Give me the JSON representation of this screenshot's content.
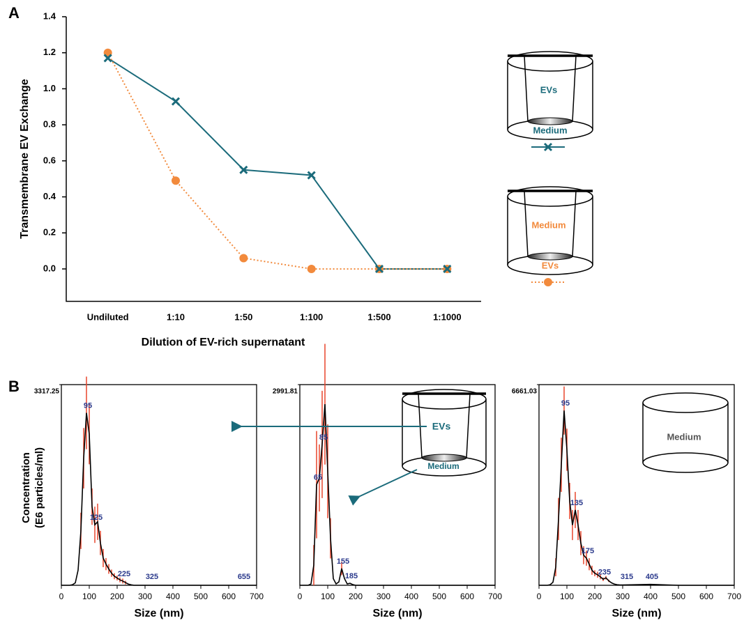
{
  "panels": [
    "A",
    "B"
  ],
  "chart_data": [
    {
      "type": "line",
      "x_label": "Dilution of EV-rich supernatant",
      "y_label": "Transmembrane EV Exchange",
      "categories": [
        "Undiluted",
        "1:10",
        "1:50",
        "1:100",
        "1:500",
        "1:1000"
      ],
      "series": [
        {
          "color": "#1b6b7b",
          "marker": "x",
          "line_style": "solid",
          "values": [
            1.17,
            0.93,
            0.55,
            0.52,
            0,
            0
          ]
        },
        {
          "color": "#f28a3c",
          "marker": "circle",
          "line_style": "dotted",
          "values": [
            1.2,
            0.49,
            0.06,
            0,
            0,
            0
          ]
        }
      ],
      "ylim": [
        -0.18,
        1.4
      ],
      "yticks": [
        {
          "value": 0,
          "label": "0.0"
        },
        0.2,
        0.4,
        0.6,
        0.8,
        {
          "value": 1,
          "label": "1.0"
        },
        1.2,
        1.4
      ],
      "legend_diagrams": [
        {
          "insert_label": "EVs",
          "well_label": "Medium"
        },
        {
          "insert_label": "Medium",
          "well_label": "EVs"
        }
      ]
    },
    {
      "type": "line",
      "x_label": "Size (nm)",
      "y_label": [
        "Concentration",
        "(E6 particles/ml)"
      ],
      "color": "#000000",
      "error_color": "#e8452c",
      "x": [
        0,
        10,
        20,
        30,
        40,
        50,
        60,
        70,
        80,
        90,
        100,
        110,
        120,
        130,
        140,
        150,
        160,
        170,
        180,
        190,
        200,
        210,
        220,
        230,
        240,
        250,
        260,
        270,
        280,
        290,
        300,
        400,
        500,
        600,
        700
      ],
      "values": [
        0,
        0,
        0,
        0,
        10,
        40,
        250,
        900,
        2100,
        2850,
        2500,
        1300,
        1000,
        1050,
        700,
        450,
        350,
        270,
        200,
        150,
        120,
        90,
        70,
        45,
        20,
        8,
        0,
        0,
        0,
        0,
        0,
        0,
        0,
        0,
        0
      ],
      "errors": [
        0,
        0,
        0,
        0,
        0,
        0,
        0,
        300,
        500,
        600,
        500,
        300,
        300,
        300,
        200,
        150,
        100,
        80,
        60,
        50,
        40,
        40,
        40,
        30,
        0,
        0,
        0,
        0,
        0,
        0,
        0,
        0,
        0,
        0,
        0
      ],
      "xlim": [
        0,
        700
      ],
      "xticks": [
        0,
        100,
        200,
        300,
        400,
        500,
        600,
        700
      ],
      "ylim": [
        0,
        3317.25
      ],
      "yticks": [
        3317.25
      ],
      "peaks": [
        95,
        125,
        225,
        325,
        655
      ]
    },
    {
      "type": "line",
      "x_label": "Size (nm)",
      "color": "#000000",
      "error_color": "#e8452c",
      "x": [
        0,
        10,
        20,
        30,
        40,
        50,
        60,
        70,
        80,
        90,
        100,
        110,
        120,
        130,
        140,
        150,
        160,
        170,
        180,
        190,
        200,
        210,
        220,
        230,
        240,
        250,
        260,
        270,
        280,
        290,
        300,
        400,
        500,
        600,
        700
      ],
      "values": [
        0,
        0,
        0,
        0,
        20,
        300,
        1500,
        1600,
        2100,
        2700,
        1700,
        700,
        100,
        20,
        50,
        250,
        100,
        20,
        30,
        10,
        0,
        0,
        0,
        0,
        0,
        0,
        0,
        0,
        0,
        0,
        0,
        0,
        0,
        0,
        0
      ],
      "errors": [
        0,
        0,
        0,
        0,
        0,
        300,
        800,
        500,
        800,
        900,
        700,
        300,
        0,
        0,
        0,
        100,
        0,
        0,
        0,
        0,
        0,
        0,
        0,
        0,
        0,
        0,
        0,
        0,
        0,
        0,
        0,
        0,
        0,
        0,
        0
      ],
      "xlim": [
        0,
        700
      ],
      "xticks": [
        0,
        100,
        200,
        300,
        400,
        500,
        600,
        700
      ],
      "ylim": [
        0,
        2991.81
      ],
      "yticks": [
        2991.81
      ],
      "peaks": [
        65,
        85,
        155,
        185
      ],
      "diagram": {
        "insert_label": "EVs",
        "well_label": "Medium"
      }
    },
    {
      "type": "line",
      "x_label": "Size (nm)",
      "color": "#000000",
      "error_color": "#e8452c",
      "x": [
        0,
        10,
        20,
        30,
        40,
        50,
        60,
        70,
        80,
        90,
        100,
        110,
        120,
        130,
        140,
        150,
        160,
        170,
        180,
        190,
        200,
        210,
        220,
        230,
        240,
        250,
        260,
        270,
        280,
        290,
        300,
        400,
        500,
        600,
        700
      ],
      "values": [
        0,
        0,
        0,
        0,
        20,
        100,
        600,
        2200,
        4000,
        5800,
        4500,
        2800,
        2000,
        2500,
        2000,
        1400,
        1000,
        900,
        700,
        500,
        400,
        350,
        280,
        200,
        250,
        150,
        80,
        40,
        20,
        10,
        10,
        30,
        0,
        0,
        0
      ],
      "errors": [
        0,
        0,
        0,
        0,
        0,
        0,
        300,
        700,
        900,
        800,
        700,
        600,
        500,
        600,
        500,
        400,
        300,
        250,
        200,
        150,
        100,
        100,
        80,
        60,
        60,
        40,
        0,
        0,
        0,
        0,
        0,
        0,
        0,
        0,
        0
      ],
      "xlim": [
        0,
        700
      ],
      "xticks": [
        0,
        100,
        200,
        300,
        400,
        500,
        600,
        700
      ],
      "ylim": [
        0,
        6661.03
      ],
      "yticks": [
        6661.03
      ],
      "peaks": [
        95,
        135,
        175,
        235,
        315,
        405
      ],
      "diagram": {
        "well_label": "Medium"
      }
    }
  ]
}
